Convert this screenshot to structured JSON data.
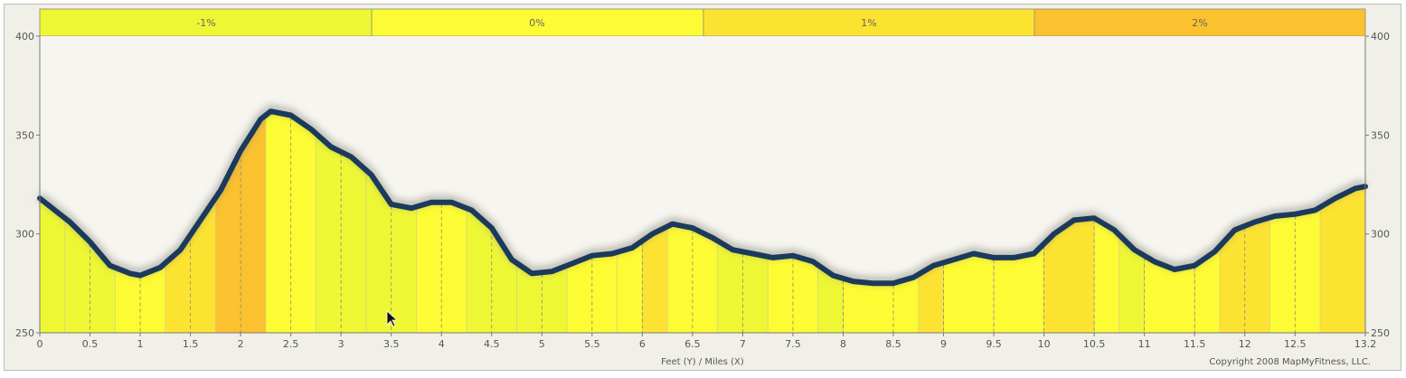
{
  "colors": {
    "background": "#f6f5ef",
    "outer": "#f1f0e8",
    "profile_line": "#1b3a5c",
    "grade_neg1": "#eef734",
    "grade_0": "#fdfb33",
    "grade_1": "#fde331",
    "grade_2": "#fbc12e"
  },
  "legend": {
    "bands": [
      {
        "label": "-1%",
        "color": "#eef734"
      },
      {
        "label": "0%",
        "color": "#fdfb33"
      },
      {
        "label": "1%",
        "color": "#fde331"
      },
      {
        "label": "2%",
        "color": "#fbc12e"
      }
    ]
  },
  "footer": {
    "axis_caption": "Feet (Y) / Miles (X)",
    "copyright": "Copyright 2008 MapMyFitness, LLC."
  },
  "chart_data": {
    "type": "area",
    "xlabel": "Miles (X)",
    "ylabel": "Feet (Y)",
    "xlim": [
      0,
      13.2
    ],
    "ylim": [
      250,
      400
    ],
    "x_ticks": [
      "0",
      "0.5",
      "1",
      "1.5",
      "2",
      "2.5",
      "3",
      "3.5",
      "4",
      "4.5",
      "5",
      "5.5",
      "6",
      "6.5",
      "7",
      "7.5",
      "8",
      "8.5",
      "9",
      "9.5",
      "10",
      "10.5",
      "11",
      "11.5",
      "12",
      "12.5",
      "13.2"
    ],
    "y_ticks": [
      "250",
      "300",
      "350",
      "400"
    ],
    "x_tick_values": [
      0,
      0.5,
      1,
      1.5,
      2,
      2.5,
      3,
      3.5,
      4,
      4.5,
      5,
      5.5,
      6,
      6.5,
      7,
      7.5,
      8,
      8.5,
      9,
      9.5,
      10,
      10.5,
      11,
      11.5,
      12,
      12.5,
      13.2
    ],
    "y_tick_values": [
      250,
      300,
      350,
      400
    ],
    "grid": "vertical dashed at x ticks",
    "series": [
      {
        "x": [
          0,
          0.2,
          0.3,
          0.5,
          0.7,
          0.9,
          1.0,
          1.2,
          1.4,
          1.6,
          1.8,
          2.0,
          2.2,
          2.3,
          2.5,
          2.7,
          2.9,
          3.1,
          3.3,
          3.5,
          3.7,
          3.9,
          4.1,
          4.3,
          4.5,
          4.7,
          4.9,
          5.1,
          5.3,
          5.5,
          5.7,
          5.9,
          6.1,
          6.3,
          6.5,
          6.7,
          6.9,
          7.1,
          7.3,
          7.5,
          7.7,
          7.9,
          8.1,
          8.3,
          8.5,
          8.7,
          8.9,
          9.1,
          9.3,
          9.5,
          9.7,
          9.9,
          10.1,
          10.3,
          10.5,
          10.7,
          10.9,
          11.1,
          11.3,
          11.5,
          11.7,
          11.9,
          12.1,
          12.3,
          12.5,
          12.7,
          12.9,
          13.1,
          13.2
        ],
        "y": [
          318,
          310,
          306,
          296,
          284,
          280,
          279,
          283,
          292,
          307,
          322,
          342,
          358,
          362,
          360,
          353,
          344,
          339,
          330,
          315,
          313,
          316,
          316,
          312,
          303,
          287,
          280,
          281,
          285,
          289,
          290,
          293,
          300,
          305,
          303,
          298,
          292,
          290,
          288,
          289,
          286,
          279,
          276,
          275,
          275,
          278,
          284,
          287,
          290,
          288,
          288,
          290,
          300,
          307,
          308,
          302,
          292,
          286,
          282,
          284,
          291,
          302,
          306,
          309,
          310,
          312,
          318,
          323,
          324
        ]
      }
    ],
    "grade_bands_by_segment": [
      {
        "x0": 0,
        "x1": 0.25,
        "grade": "-1%"
      },
      {
        "x0": 0.25,
        "x1": 0.75,
        "grade": "-1%"
      },
      {
        "x0": 0.75,
        "x1": 1.25,
        "grade": "0%"
      },
      {
        "x0": 1.25,
        "x1": 1.75,
        "grade": "1%"
      },
      {
        "x0": 1.75,
        "x1": 2.25,
        "grade": "2%"
      },
      {
        "x0": 2.25,
        "x1": 2.75,
        "grade": "0%"
      },
      {
        "x0": 2.75,
        "x1": 3.25,
        "grade": "-1%"
      },
      {
        "x0": 3.25,
        "x1": 3.75,
        "grade": "-1%"
      },
      {
        "x0": 3.75,
        "x1": 4.25,
        "grade": "0%"
      },
      {
        "x0": 4.25,
        "x1": 4.75,
        "grade": "-1%"
      },
      {
        "x0": 4.75,
        "x1": 5.25,
        "grade": "-1%"
      },
      {
        "x0": 5.25,
        "x1": 5.75,
        "grade": "0%"
      },
      {
        "x0": 5.75,
        "x1": 6.0,
        "grade": "0%"
      },
      {
        "x0": 6.0,
        "x1": 6.25,
        "grade": "1%"
      },
      {
        "x0": 6.25,
        "x1": 6.75,
        "grade": "0%"
      },
      {
        "x0": 6.75,
        "x1": 7.25,
        "grade": "-1%"
      },
      {
        "x0": 7.25,
        "x1": 7.75,
        "grade": "0%"
      },
      {
        "x0": 7.75,
        "x1": 8.0,
        "grade": "-1%"
      },
      {
        "x0": 8.0,
        "x1": 8.75,
        "grade": "0%"
      },
      {
        "x0": 8.75,
        "x1": 9.0,
        "grade": "1%"
      },
      {
        "x0": 9.0,
        "x1": 9.5,
        "grade": "0%"
      },
      {
        "x0": 9.5,
        "x1": 10.0,
        "grade": "0%"
      },
      {
        "x0": 10.0,
        "x1": 10.5,
        "grade": "1%"
      },
      {
        "x0": 10.5,
        "x1": 10.75,
        "grade": "0%"
      },
      {
        "x0": 10.75,
        "x1": 11.0,
        "grade": "-1%"
      },
      {
        "x0": 11.0,
        "x1": 11.5,
        "grade": "0%"
      },
      {
        "x0": 11.5,
        "x1": 11.75,
        "grade": "0%"
      },
      {
        "x0": 11.75,
        "x1": 12.25,
        "grade": "1%"
      },
      {
        "x0": 12.25,
        "x1": 12.75,
        "grade": "0%"
      },
      {
        "x0": 12.75,
        "x1": 13.2,
        "grade": "1%"
      }
    ]
  }
}
